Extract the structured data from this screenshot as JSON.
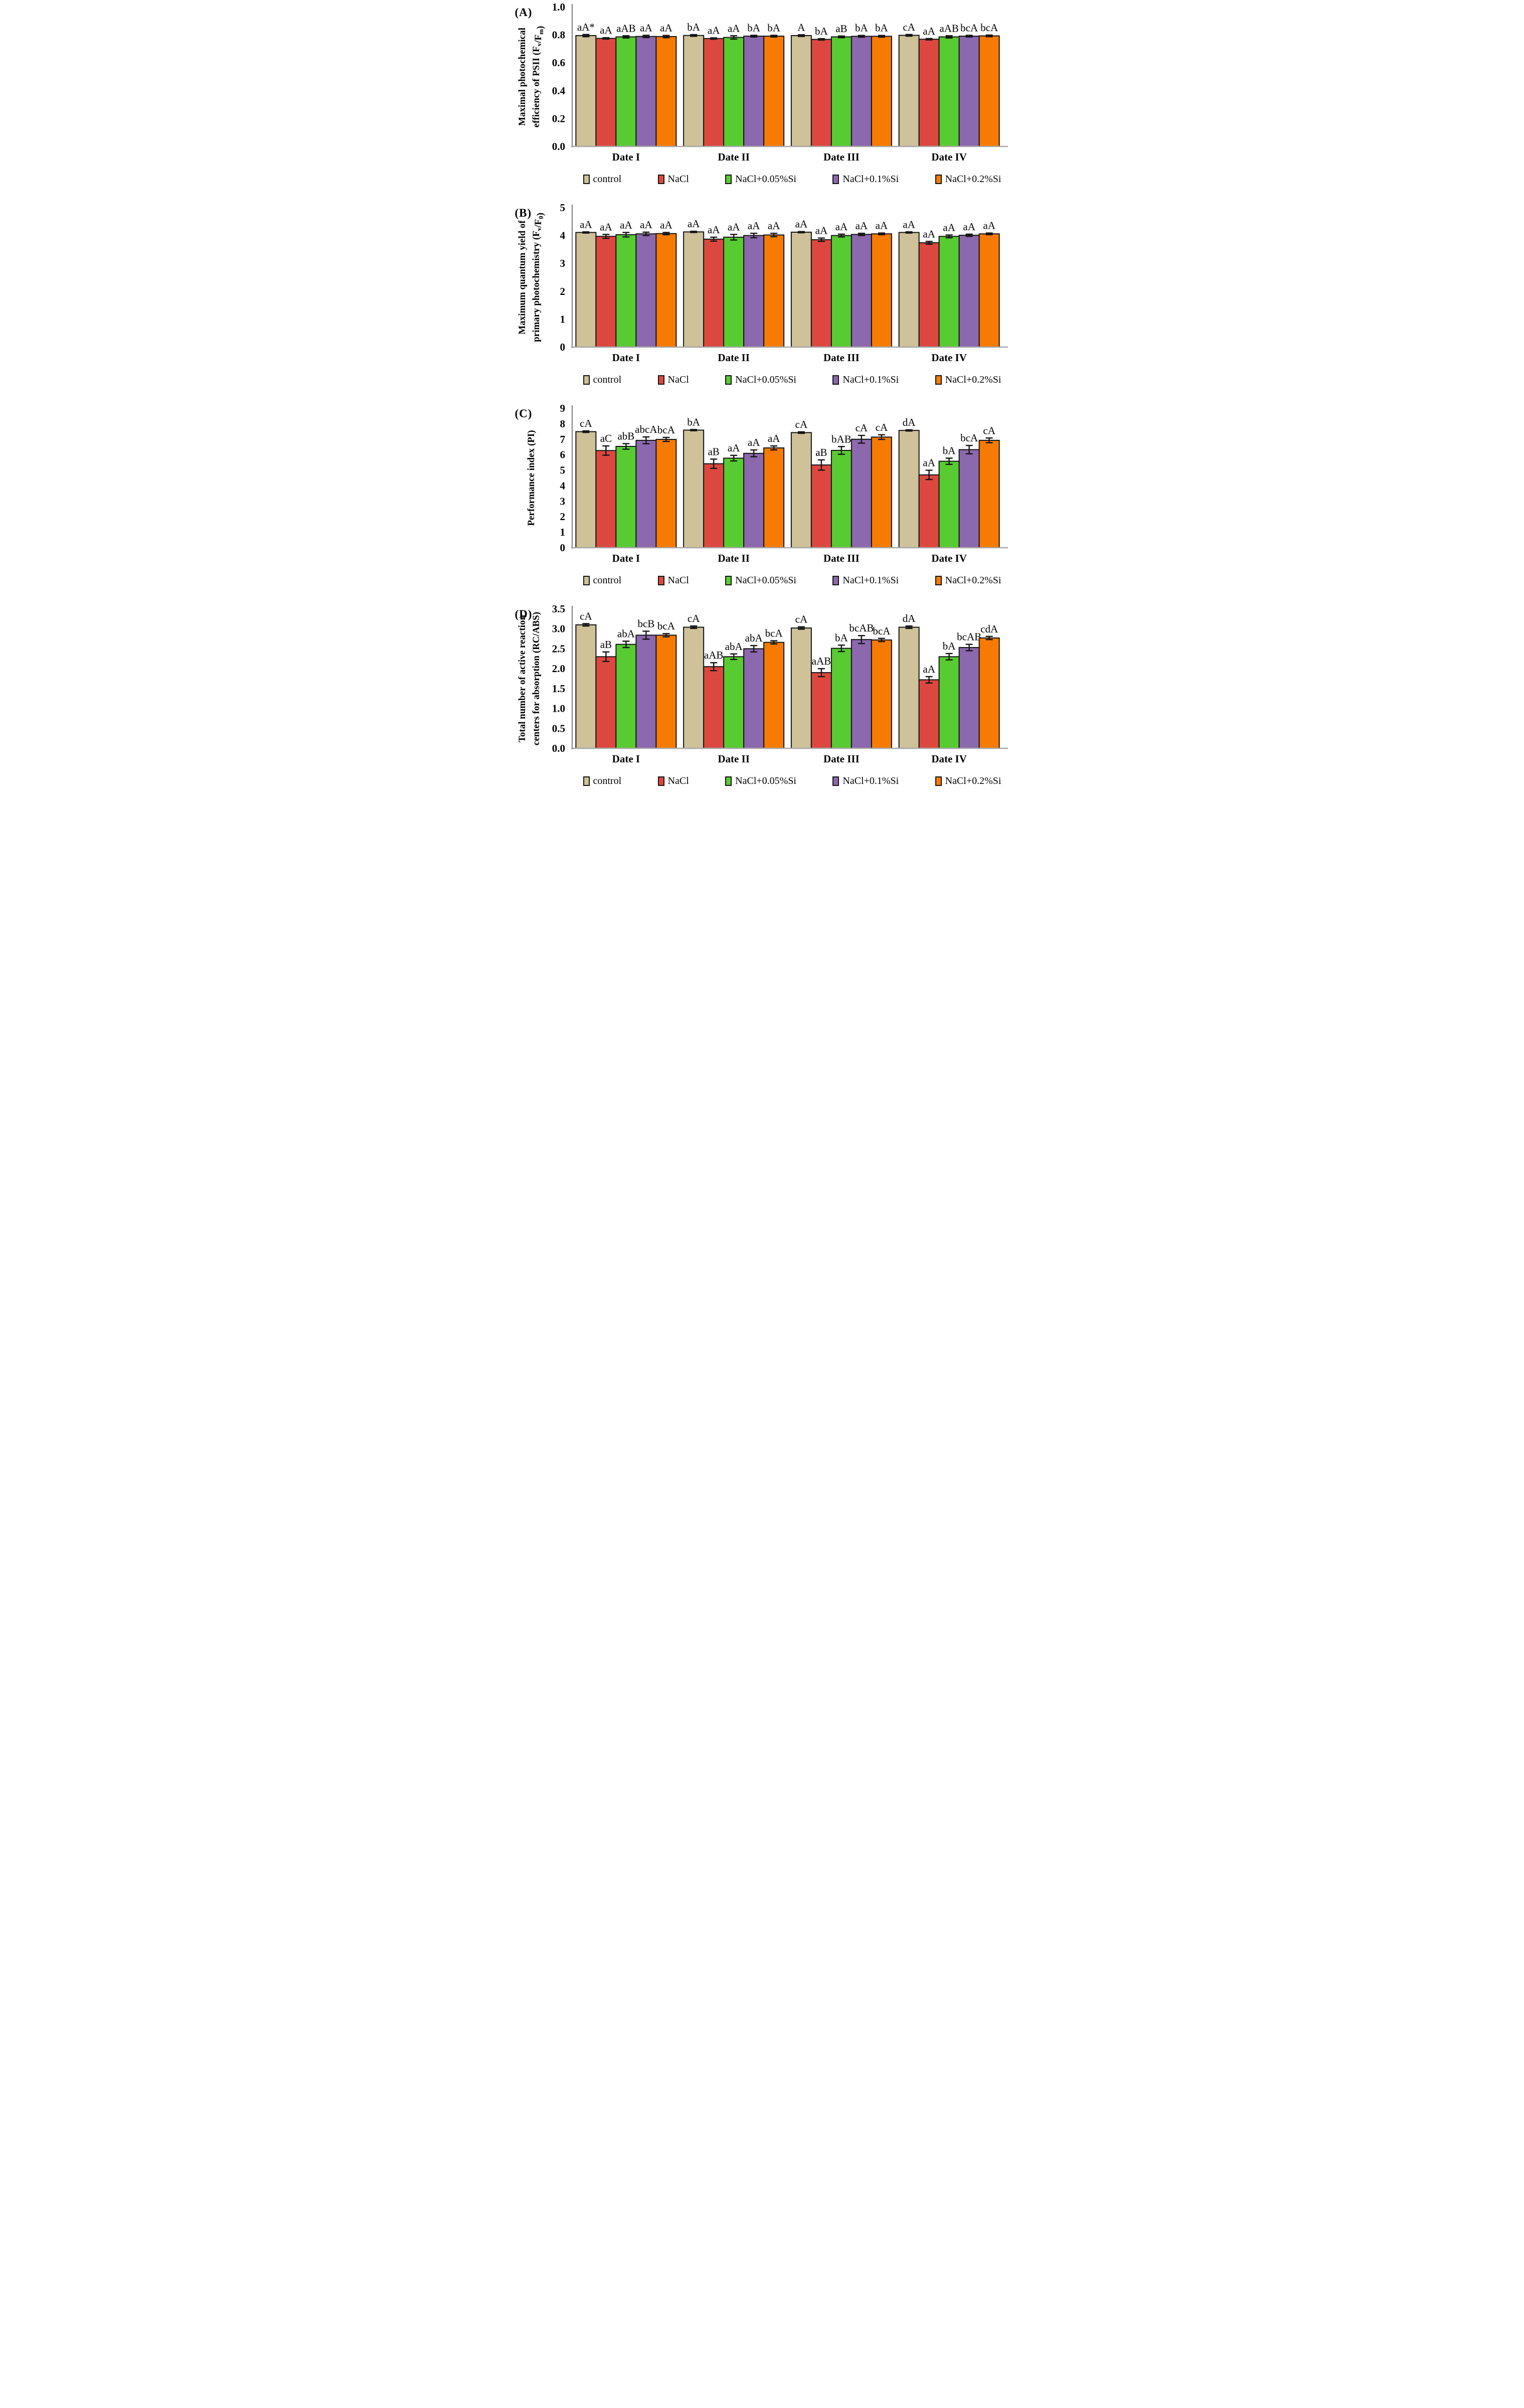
{
  "figure_colors": {
    "bar_border": "#141414",
    "error_bar": "#141414",
    "axis_line": "#8f8f8f",
    "baseline": "#a8a8a8",
    "text": "#000000"
  },
  "legend": {
    "items": [
      {
        "label": "control",
        "color": "#cfc198"
      },
      {
        "label": "NaCl",
        "color": "#dc4840"
      },
      {
        "label": "NaCl+0.05%Si",
        "color": "#58cb32"
      },
      {
        "label": "NaCl+0.1%Si",
        "color": "#8c68ae"
      },
      {
        "label": "NaCl+0.2%Si",
        "color": "#f77b00"
      }
    ]
  },
  "chart_data": [
    {
      "id": "A",
      "panel_label": "(A)",
      "type": "bar",
      "title": "",
      "xlabel": "",
      "ylabel_lines": [
        [
          {
            "t": "Maximal photochemical"
          }
        ],
        [
          {
            "t": "efficiency of PSII (F"
          },
          {
            "s": "v"
          },
          {
            "t": "/F"
          },
          {
            "s": "m"
          },
          {
            "t": ")"
          }
        ]
      ],
      "ylim": [
        0,
        1.0
      ],
      "ytick_values": [
        0,
        0.2,
        0.4,
        0.6,
        0.8,
        1.0
      ],
      "yticks": [
        "0.0",
        "0.2",
        "0.4",
        "0.6",
        "0.8",
        "1.0"
      ],
      "categories": [
        "Date I",
        "Date II",
        "Date III",
        "Date IV"
      ],
      "series": [
        {
          "name": "control",
          "values": [
            0.795,
            0.796,
            0.795,
            0.797
          ],
          "errors": [
            0.008,
            0.006,
            0.006,
            0.006
          ],
          "letters": [
            "aA*",
            "bA",
            "A",
            "cA"
          ]
        },
        {
          "name": "NaCl",
          "values": [
            0.775,
            0.774,
            0.768,
            0.769
          ],
          "errors": [
            0.005,
            0.005,
            0.005,
            0.005
          ],
          "letters": [
            "aA",
            "aA",
            "bA",
            "aA"
          ]
        },
        {
          "name": "NaCl+0.05%Si",
          "values": [
            0.786,
            0.782,
            0.786,
            0.786
          ],
          "errors": [
            0.008,
            0.012,
            0.006,
            0.008
          ],
          "letters": [
            "aAB",
            "aA",
            "aB",
            "aAB"
          ]
        },
        {
          "name": "NaCl+0.1%Si",
          "values": [
            0.789,
            0.791,
            0.79,
            0.791
          ],
          "errors": [
            0.008,
            0.006,
            0.006,
            0.006
          ],
          "letters": [
            "aA",
            "bA",
            "bA",
            "bcA"
          ]
        },
        {
          "name": "NaCl+0.2%Si",
          "values": [
            0.788,
            0.791,
            0.79,
            0.793
          ],
          "errors": [
            0.008,
            0.006,
            0.006,
            0.006
          ],
          "letters": [
            "aA",
            "bA",
            "bA",
            "bcA"
          ]
        }
      ]
    },
    {
      "id": "B",
      "panel_label": "(B)",
      "type": "bar",
      "title": "",
      "xlabel": "",
      "ylabel_lines": [
        [
          {
            "t": "Maximum quantum yield of"
          }
        ],
        [
          {
            "t": "primary photochemistry (F"
          },
          {
            "s": "v"
          },
          {
            "t": "/F"
          },
          {
            "s": "0"
          },
          {
            "t": ")"
          }
        ]
      ],
      "ylim": [
        0,
        5
      ],
      "ytick_values": [
        0,
        1,
        2,
        3,
        4,
        5
      ],
      "yticks": [
        "0",
        "1",
        "2",
        "3",
        "4",
        "5"
      ],
      "categories": [
        "Date I",
        "Date II",
        "Date III",
        "Date IV"
      ],
      "series": [
        {
          "name": "control",
          "values": [
            4.11,
            4.13,
            4.12,
            4.11
          ],
          "errors": [
            0.02,
            0.02,
            0.02,
            0.02
          ],
          "letters": [
            "aA",
            "aA",
            "aA",
            "aA"
          ]
        },
        {
          "name": "NaCl",
          "values": [
            3.97,
            3.87,
            3.85,
            3.74
          ],
          "errors": [
            0.07,
            0.07,
            0.06,
            0.05
          ],
          "letters": [
            "aA",
            "aA",
            "aA",
            "aA"
          ]
        },
        {
          "name": "NaCl+0.05%Si",
          "values": [
            4.03,
            3.94,
            4.0,
            3.97
          ],
          "errors": [
            0.08,
            0.1,
            0.05,
            0.05
          ],
          "letters": [
            "aA",
            "aA",
            "aA",
            "aA"
          ]
        },
        {
          "name": "NaCl+0.1%Si",
          "values": [
            4.06,
            4.0,
            4.04,
            4.01
          ],
          "errors": [
            0.06,
            0.08,
            0.04,
            0.04
          ],
          "letters": [
            "aA",
            "aA",
            "aA",
            "aA"
          ]
        },
        {
          "name": "NaCl+0.2%Si",
          "values": [
            4.07,
            4.02,
            4.06,
            4.06
          ],
          "errors": [
            0.04,
            0.06,
            0.03,
            0.03
          ],
          "letters": [
            "aA",
            "aA",
            "aA",
            "aA"
          ]
        }
      ]
    },
    {
      "id": "C",
      "panel_label": "(C)",
      "type": "bar",
      "title": "",
      "xlabel": "",
      "ylabel_lines": [
        [
          {
            "t": "Performance index (PI)"
          }
        ]
      ],
      "ylim": [
        0,
        9
      ],
      "ytick_values": [
        0,
        1,
        2,
        3,
        4,
        5,
        6,
        7,
        8,
        9
      ],
      "yticks": [
        "0",
        "1",
        "2",
        "3",
        "4",
        "5",
        "6",
        "7",
        "8",
        "9"
      ],
      "categories": [
        "Date I",
        "Date II",
        "Date III",
        "Date IV"
      ],
      "series": [
        {
          "name": "control",
          "values": [
            7.49,
            7.59,
            7.43,
            7.57
          ],
          "errors": [
            0.05,
            0.04,
            0.05,
            0.04
          ],
          "letters": [
            "cA",
            "bA",
            "cA",
            "dA"
          ]
        },
        {
          "name": "NaCl",
          "values": [
            6.27,
            5.42,
            5.34,
            4.7
          ],
          "errors": [
            0.3,
            0.3,
            0.33,
            0.3
          ],
          "letters": [
            "aC",
            "aB",
            "aB",
            "aA"
          ]
        },
        {
          "name": "NaCl+0.05%Si",
          "values": [
            6.54,
            5.78,
            6.28,
            5.58
          ],
          "errors": [
            0.18,
            0.18,
            0.25,
            0.2
          ],
          "letters": [
            "abB",
            "aA",
            "bAB",
            "bA"
          ]
        },
        {
          "name": "NaCl+0.1%Si",
          "values": [
            6.93,
            6.09,
            7.0,
            6.33
          ],
          "errors": [
            0.22,
            0.22,
            0.25,
            0.27
          ],
          "letters": [
            "abcA",
            "aA",
            "cA",
            "bcA"
          ]
        },
        {
          "name": "NaCl+0.2%Si",
          "values": [
            6.99,
            6.44,
            7.14,
            6.93
          ],
          "errors": [
            0.13,
            0.13,
            0.15,
            0.15
          ],
          "letters": [
            "bcA",
            "aA",
            "cA",
            "cA"
          ]
        }
      ]
    },
    {
      "id": "D",
      "panel_label": "(D)",
      "type": "bar",
      "title": "",
      "xlabel": "",
      "ylabel_lines": [
        [
          {
            "t": "Total number of active reaction"
          }
        ],
        [
          {
            "t": "centers for absorption (RC/ABS)"
          }
        ]
      ],
      "ylim": [
        0,
        3.5
      ],
      "ytick_values": [
        0,
        0.5,
        1.0,
        1.5,
        2.0,
        2.5,
        3.0,
        3.5
      ],
      "yticks": [
        "0.0",
        "0.5",
        "1.0",
        "1.5",
        "2.0",
        "2.5",
        "3.0",
        "3.5"
      ],
      "categories": [
        "Date I",
        "Date II",
        "Date III",
        "Date IV"
      ],
      "series": [
        {
          "name": "control",
          "values": [
            3.1,
            3.04,
            3.02,
            3.04
          ],
          "errors": [
            0.03,
            0.03,
            0.03,
            0.03
          ],
          "letters": [
            "cA",
            "cA",
            "cA",
            "dA"
          ]
        },
        {
          "name": "NaCl",
          "values": [
            2.3,
            2.05,
            1.9,
            1.72
          ],
          "errors": [
            0.12,
            0.1,
            0.1,
            0.08
          ],
          "letters": [
            "aB",
            "aAB",
            "aAB",
            "aA"
          ]
        },
        {
          "name": "NaCl+0.05%Si",
          "values": [
            2.61,
            2.3,
            2.51,
            2.3
          ],
          "errors": [
            0.08,
            0.07,
            0.08,
            0.08
          ],
          "letters": [
            "abA",
            "abA",
            "bA",
            "bA"
          ]
        },
        {
          "name": "NaCl+0.1%Si",
          "values": [
            2.84,
            2.5,
            2.73,
            2.53
          ],
          "errors": [
            0.1,
            0.08,
            0.1,
            0.08
          ],
          "letters": [
            "bcB",
            "abA",
            "bcAB",
            "bcAB"
          ]
        },
        {
          "name": "NaCl+0.2%Si",
          "values": [
            2.84,
            2.66,
            2.72,
            2.77
          ],
          "errors": [
            0.04,
            0.04,
            0.04,
            0.04
          ],
          "letters": [
            "bcA",
            "bcA",
            "bcA",
            "cdA"
          ]
        }
      ]
    }
  ]
}
